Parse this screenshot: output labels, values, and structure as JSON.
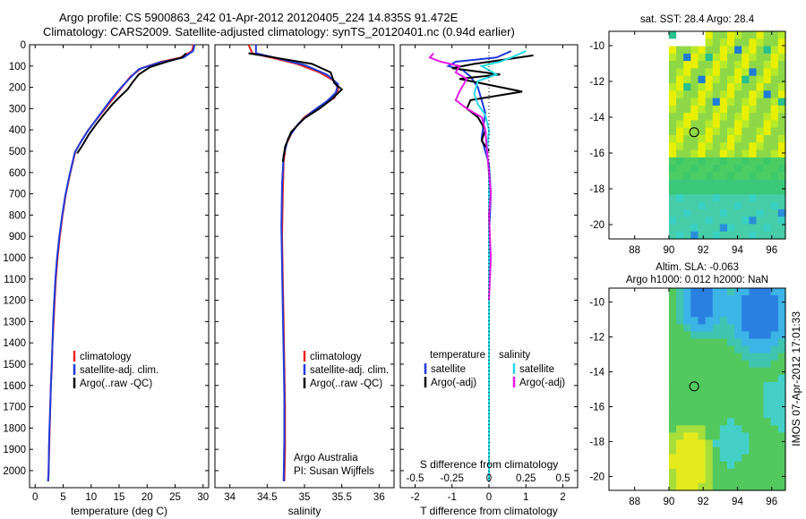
{
  "title_line1": "Argo profile: CS 5900863_242 01-Apr-2012 20120405_224 14.835S 91.472E",
  "title_line2": "Climatology: CARS2009. Satellite-adjusted climatology: synTS_20120401.nc (0.94d earlier)",
  "footer": "IMOS 07-Apr-2012 17:01:33",
  "colors": {
    "climatology": "#e8231f",
    "satellite": "#1f3adb",
    "argo": "#000000",
    "sal_satellite": "#26d9e6",
    "sal_argo": "#e619e6"
  },
  "chart_data": [
    {
      "id": "temperature",
      "type": "line",
      "xlabel": "temperature (deg C)",
      "xlim": [
        -1,
        31
      ],
      "xticks": [
        0,
        5,
        10,
        15,
        20,
        25,
        30
      ],
      "ylim": [
        2080,
        0
      ],
      "yticks": [
        0,
        100,
        200,
        300,
        400,
        500,
        600,
        700,
        800,
        900,
        1000,
        1100,
        1200,
        1300,
        1400,
        1500,
        1600,
        1700,
        1800,
        1900,
        2000
      ],
      "legend": [
        "climatology",
        "satellite-adj. clim.",
        "Argo(..raw -QC)"
      ],
      "series": [
        {
          "name": "climatology",
          "color": "#e8231f",
          "points": [
            [
              28.3,
              0
            ],
            [
              28.0,
              30
            ],
            [
              26,
              60
            ],
            [
              22.5,
              80
            ],
            [
              19,
              110
            ],
            [
              17,
              150
            ],
            [
              15.5,
              200
            ],
            [
              14,
              250
            ],
            [
              12.5,
              300
            ],
            [
              11,
              350
            ],
            [
              9.5,
              400
            ],
            [
              8.3,
              450
            ],
            [
              7.2,
              500
            ],
            [
              6.3,
              600
            ],
            [
              5.5,
              700
            ],
            [
              4.9,
              800
            ],
            [
              4.4,
              900
            ],
            [
              4.0,
              1000
            ],
            [
              3.7,
              1100
            ],
            [
              3.5,
              1200
            ],
            [
              3.3,
              1300
            ],
            [
              3.1,
              1400
            ],
            [
              3.0,
              1500
            ],
            [
              2.8,
              1600
            ],
            [
              2.7,
              1700
            ],
            [
              2.6,
              1800
            ],
            [
              2.5,
              1900
            ],
            [
              2.4,
              2000
            ],
            [
              2.35,
              2050
            ]
          ]
        },
        {
          "name": "satellite-adj. clim.",
          "color": "#1f3adb",
          "points": [
            [
              28.5,
              0
            ],
            [
              28.2,
              30
            ],
            [
              26.5,
              60
            ],
            [
              22,
              85
            ],
            [
              18.5,
              115
            ],
            [
              16.8,
              160
            ],
            [
              15.2,
              205
            ],
            [
              13.6,
              255
            ],
            [
              12.2,
              305
            ],
            [
              10.8,
              355
            ],
            [
              9.4,
              405
            ],
            [
              8.2,
              455
            ],
            [
              7.1,
              505
            ],
            [
              6.2,
              605
            ],
            [
              5.4,
              705
            ],
            [
              4.8,
              805
            ],
            [
              4.3,
              905
            ],
            [
              3.9,
              1005
            ],
            [
              3.6,
              1105
            ],
            [
              3.4,
              1205
            ],
            [
              3.2,
              1305
            ],
            [
              3.1,
              1405
            ],
            [
              2.95,
              1505
            ],
            [
              2.8,
              1605
            ],
            [
              2.7,
              1705
            ],
            [
              2.55,
              1805
            ],
            [
              2.45,
              1905
            ],
            [
              2.4,
              2005
            ],
            [
              2.3,
              2050
            ]
          ]
        },
        {
          "name": "Argo(..raw -QC)",
          "color": "#000000",
          "points": [
            [
              27.0,
              40
            ],
            [
              26.2,
              60
            ],
            [
              23.5,
              80
            ],
            [
              20.5,
              105
            ],
            [
              18.5,
              140
            ],
            [
              17.3,
              180
            ],
            [
              16.5,
              210
            ],
            [
              15.3,
              240
            ],
            [
              13.8,
              280
            ],
            [
              12.5,
              320
            ],
            [
              11,
              370
            ],
            [
              9.6,
              420
            ],
            [
              8.5,
              470
            ],
            [
              7.5,
              510
            ]
          ]
        }
      ]
    },
    {
      "id": "salinity",
      "type": "line",
      "xlabel": "salinity",
      "xlim": [
        33.8,
        36.2
      ],
      "xticks": [
        34,
        34.5,
        35,
        35.5,
        36
      ],
      "ylim": [
        2080,
        0
      ],
      "legend": [
        "climatology",
        "satellite-adj. clim.",
        "Argo(..raw -QC)"
      ],
      "annotations": [
        "Argo Australia",
        "PI: Susan Wijffels"
      ],
      "series": [
        {
          "name": "climatology",
          "color": "#e8231f",
          "points": [
            [
              34.25,
              0
            ],
            [
              34.3,
              40
            ],
            [
              34.55,
              60
            ],
            [
              34.9,
              90
            ],
            [
              35.2,
              130
            ],
            [
              35.4,
              170
            ],
            [
              35.45,
              210
            ],
            [
              35.4,
              250
            ],
            [
              35.2,
              290
            ],
            [
              35.0,
              340
            ],
            [
              34.85,
              400
            ],
            [
              34.75,
              470
            ],
            [
              34.72,
              550
            ],
            [
              34.71,
              700
            ],
            [
              34.7,
              900
            ],
            [
              34.71,
              1100
            ],
            [
              34.72,
              1300
            ],
            [
              34.73,
              1500
            ],
            [
              34.74,
              1700
            ],
            [
              34.74,
              1900
            ],
            [
              34.73,
              2050
            ]
          ]
        },
        {
          "name": "satellite-adj. clim.",
          "color": "#1f3adb",
          "points": [
            [
              34.35,
              0
            ],
            [
              34.35,
              40
            ],
            [
              34.6,
              60
            ],
            [
              35.0,
              95
            ],
            [
              35.3,
              140
            ],
            [
              35.45,
              185
            ],
            [
              35.42,
              225
            ],
            [
              35.3,
              265
            ],
            [
              35.1,
              315
            ],
            [
              34.92,
              370
            ],
            [
              34.78,
              440
            ],
            [
              34.72,
              520
            ],
            [
              34.7,
              650
            ],
            [
              34.69,
              850
            ],
            [
              34.7,
              1050
            ],
            [
              34.71,
              1250
            ],
            [
              34.72,
              1450
            ],
            [
              34.73,
              1650
            ],
            [
              34.73,
              1850
            ],
            [
              34.72,
              2050
            ]
          ]
        },
        {
          "name": "Argo(..raw -QC)",
          "color": "#000000",
          "points": [
            [
              34.25,
              40
            ],
            [
              34.6,
              60
            ],
            [
              35.1,
              90
            ],
            [
              35.35,
              130
            ],
            [
              35.4,
              180
            ],
            [
              35.5,
              210
            ],
            [
              35.35,
              260
            ],
            [
              35.2,
              300
            ],
            [
              35.0,
              345
            ],
            [
              34.82,
              410
            ],
            [
              34.74,
              480
            ],
            [
              34.71,
              550
            ]
          ]
        }
      ]
    },
    {
      "id": "difference",
      "type": "line",
      "xlabel": "T difference from climatology",
      "xlabel_top": "S difference from climatology",
      "xlim": [
        -2.4,
        2.4
      ],
      "xticks": [
        -2,
        -1,
        0,
        1,
        2
      ],
      "xticks_sal": [
        -0.5,
        -0.25,
        0,
        0.25,
        0.5
      ],
      "ylim": [
        2080,
        0
      ],
      "legend_titles": [
        "temperature",
        "salinity"
      ],
      "legend": [
        "satellite",
        "Argo(-adj)",
        "satellite",
        "Argo(-adj)"
      ],
      "series": [
        {
          "name": "satellite",
          "color": "#1f3adb",
          "points": [
            [
              0.6,
              30
            ],
            [
              0.2,
              60
            ],
            [
              -0.9,
              80
            ],
            [
              -1.1,
              100
            ],
            [
              -0.7,
              120
            ],
            [
              -0.5,
              150
            ],
            [
              -0.3,
              200
            ],
            [
              -0.2,
              260
            ],
            [
              -0.1,
              320
            ],
            [
              -0.15,
              380
            ],
            [
              -0.2,
              440
            ],
            [
              -0.1,
              500
            ],
            [
              0.0,
              560
            ],
            [
              0.05,
              700
            ],
            [
              0.0,
              900
            ],
            [
              0.0,
              1200
            ],
            [
              0.0,
              1500
            ],
            [
              0.0,
              1800
            ],
            [
              0.0,
              2050
            ]
          ]
        },
        {
          "name": "Argo(-adj)",
          "color": "#000000",
          "points": [
            [
              1.2,
              50
            ],
            [
              0.4,
              70
            ],
            [
              -0.4,
              90
            ],
            [
              -1.0,
              110
            ],
            [
              0.3,
              140
            ],
            [
              -0.8,
              160
            ],
            [
              0.9,
              220
            ],
            [
              -0.5,
              260
            ],
            [
              -0.6,
              300
            ],
            [
              -0.3,
              340
            ],
            [
              -0.1,
              400
            ],
            [
              -0.2,
              450
            ],
            [
              0.0,
              500
            ]
          ]
        },
        {
          "name": "satellite",
          "color": "#26d9e6",
          "points": [
            [
              1.0,
              30
            ],
            [
              0.6,
              60
            ],
            [
              0.3,
              80
            ],
            [
              -0.2,
              100
            ],
            [
              0.2,
              140
            ],
            [
              -0.3,
              170
            ],
            [
              -0.4,
              230
            ],
            [
              -0.3,
              280
            ],
            [
              -0.1,
              330
            ],
            [
              0.0,
              400
            ],
            [
              -0.05,
              500
            ],
            [
              0.0,
              600
            ],
            [
              0.0,
              800
            ],
            [
              0.0,
              1000
            ],
            [
              0.0,
              1300
            ],
            [
              0.0,
              1600
            ],
            [
              0.0,
              1900
            ],
            [
              0.0,
              2050
            ]
          ]
        },
        {
          "name": "Argo(-adj)",
          "color": "#e619e6",
          "points": [
            [
              -1.5,
              40
            ],
            [
              -1.6,
              60
            ],
            [
              -1.3,
              80
            ],
            [
              -0.8,
              100
            ],
            [
              -0.9,
              130
            ],
            [
              -0.6,
              160
            ],
            [
              -0.8,
              220
            ],
            [
              -0.9,
              260
            ],
            [
              -0.6,
              300
            ],
            [
              -0.2,
              340
            ],
            [
              -0.1,
              400
            ],
            [
              -0.05,
              500
            ],
            [
              0.0,
              600
            ],
            [
              0.05,
              700
            ],
            [
              0.0,
              800
            ],
            [
              0.05,
              1000
            ],
            [
              0.0,
              1200
            ]
          ]
        }
      ]
    },
    {
      "id": "sst_map",
      "type": "heatmap",
      "title": "sat. SST: 28.4 Argo: 28.4",
      "xlim": [
        86.5,
        96.8
      ],
      "xticks": [
        88,
        90,
        92,
        94,
        96
      ],
      "ylim": [
        -20.8,
        -9.2
      ],
      "yticks": [
        -10,
        -12,
        -14,
        -16,
        -18,
        -20
      ],
      "data_lon_start": 90,
      "argo_position": [
        91.472,
        -14.835
      ]
    },
    {
      "id": "sla_map",
      "type": "heatmap",
      "title": "Altim. SLA: -0.063",
      "subtitle": "Argo h1000: 0.012 h2000: NaN",
      "xlim": [
        86.5,
        96.8
      ],
      "xticks": [
        88,
        90,
        92,
        94,
        96
      ],
      "ylim": [
        -20.8,
        -9.2
      ],
      "yticks": [
        -10,
        -12,
        -14,
        -16,
        -18,
        -20
      ],
      "data_lon_start": 90,
      "argo_position": [
        91.472,
        -14.835
      ]
    }
  ]
}
